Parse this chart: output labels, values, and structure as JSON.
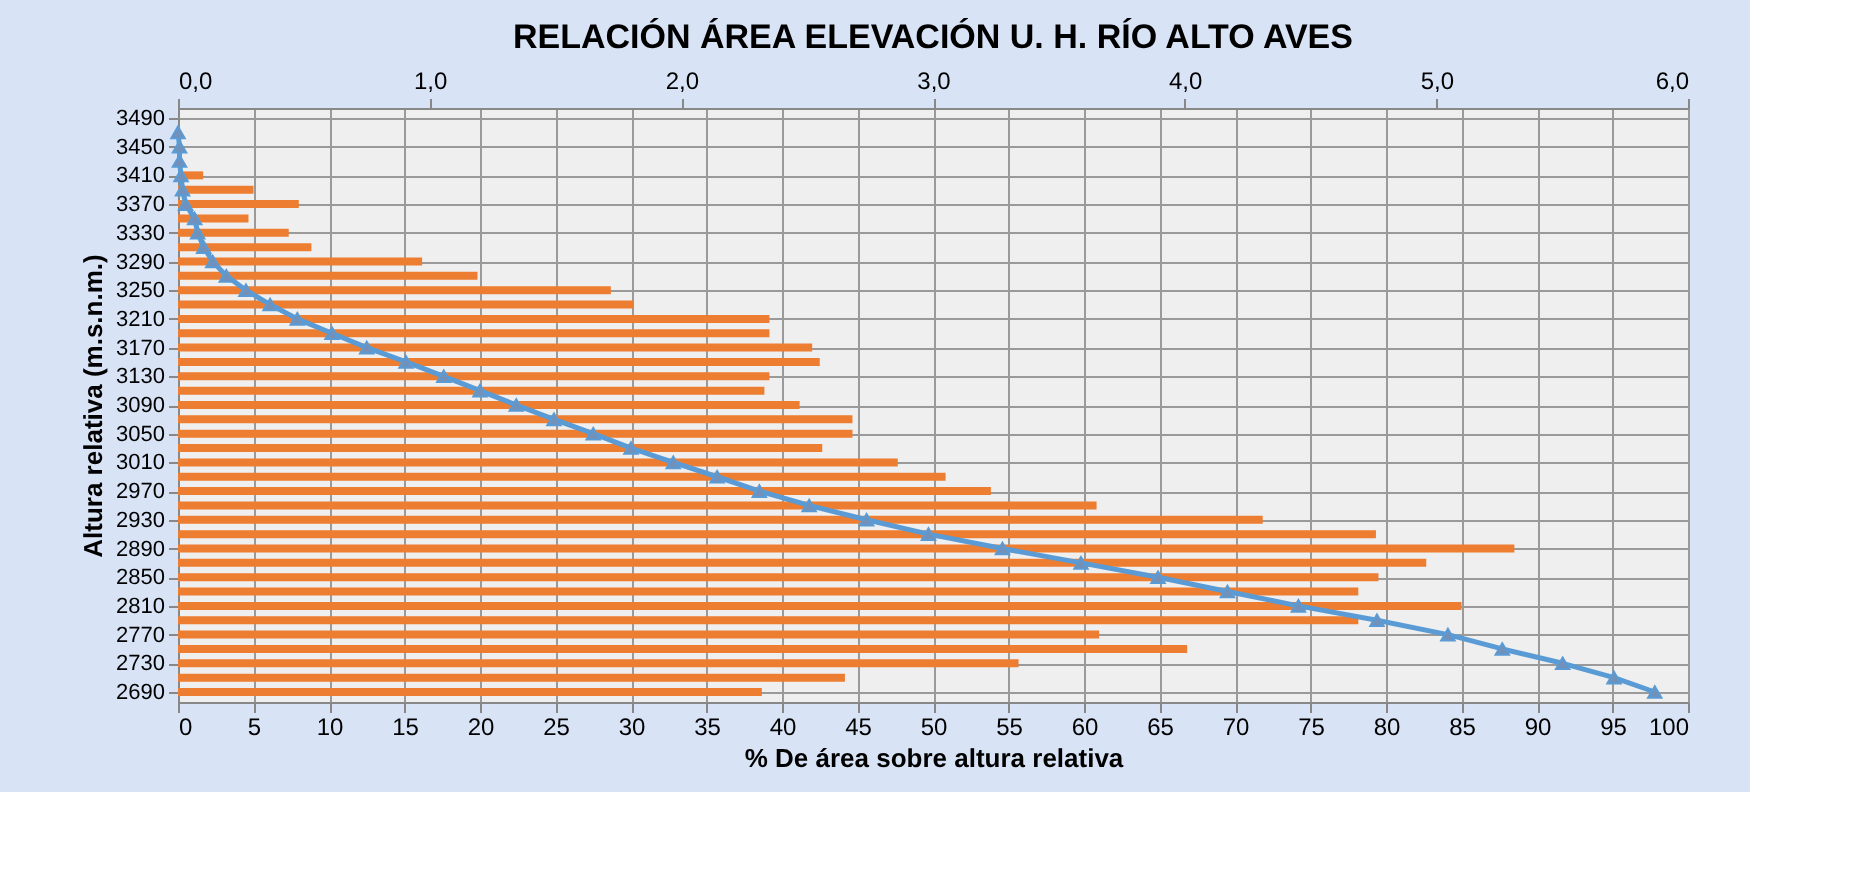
{
  "chart_data": {
    "type": "bar",
    "orientation": "horizontal",
    "title": "RELACIÓN ÁREA ELEVACIÓN U. H. RÍO ALTO AVES",
    "xlabel": "% De área sobre altura relativa",
    "ylabel": "Altura relativa (m.s.n.m.)",
    "ylim": [
      2690,
      3490
    ],
    "yticks": [
      2690,
      2730,
      2770,
      2810,
      2850,
      2890,
      2930,
      2970,
      3010,
      3050,
      3090,
      3130,
      3170,
      3210,
      3250,
      3290,
      3330,
      3370,
      3410,
      3450,
      3490
    ],
    "xlim": [
      0,
      100
    ],
    "xticks": [
      0,
      5,
      10,
      15,
      20,
      25,
      30,
      35,
      40,
      45,
      50,
      55,
      60,
      65,
      70,
      75,
      80,
      85,
      90,
      95,
      100
    ],
    "x2lim": [
      0,
      6
    ],
    "x2ticks": [
      {
        "value": 0,
        "label": "0,0"
      },
      {
        "value": 1,
        "label": "1,0"
      },
      {
        "value": 2,
        "label": "2,0"
      },
      {
        "value": 3,
        "label": "3,0"
      },
      {
        "value": 4,
        "label": "4,0"
      },
      {
        "value": 5,
        "label": "5,0"
      },
      {
        "value": 6,
        "label": "6,0"
      }
    ],
    "grid": true,
    "series": [
      {
        "type": "bar",
        "axis": "x2",
        "color": "#ed7d31",
        "x": [
          3410,
          3390,
          3370,
          3350,
          3330,
          3310,
          3290,
          3270,
          3250,
          3230,
          3210,
          3190,
          3170,
          3150,
          3130,
          3110,
          3090,
          3070,
          3050,
          3030,
          3010,
          2990,
          2970,
          2950,
          2930,
          2910,
          2890,
          2870,
          2850,
          2830,
          2810,
          2790,
          2770,
          2750,
          2730,
          2710,
          2690
        ],
        "values": [
          0.1,
          0.3,
          0.48,
          0.28,
          0.44,
          0.53,
          0.97,
          1.19,
          1.72,
          1.81,
          2.35,
          2.35,
          2.52,
          2.55,
          2.35,
          2.33,
          2.47,
          2.68,
          2.68,
          2.56,
          2.86,
          3.05,
          3.23,
          3.65,
          4.31,
          4.76,
          5.31,
          4.96,
          4.77,
          4.69,
          5.1,
          4.69,
          3.66,
          4.01,
          3.34,
          2.65,
          2.32
        ]
      },
      {
        "type": "line",
        "color": "#5b9bd5",
        "marker": "triangle",
        "x": [
          3470,
          3450,
          3430,
          3410,
          3390,
          3370,
          3350,
          3330,
          3310,
          3290,
          3270,
          3250,
          3230,
          3210,
          3190,
          3170,
          3150,
          3130,
          3110,
          3090,
          3070,
          3050,
          3030,
          3010,
          2990,
          2970,
          2950,
          2930,
          2910,
          2890,
          2870,
          2850,
          2830,
          2810,
          2790,
          2770,
          2750,
          2730,
          2710,
          2690
        ],
        "values": [
          0,
          0.1,
          0.1,
          0.2,
          0.3,
          0.5,
          1.1,
          1.3,
          1.7,
          2.3,
          3.2,
          4.5,
          6.1,
          7.9,
          10.2,
          12.5,
          15.1,
          17.6,
          20.0,
          22.4,
          24.9,
          27.5,
          30.0,
          32.8,
          35.7,
          38.5,
          41.8,
          45.6,
          49.7,
          54.6,
          59.8,
          64.9,
          69.5,
          74.2,
          79.4,
          84.1,
          87.7,
          91.7,
          95.1,
          97.8
        ]
      }
    ]
  }
}
